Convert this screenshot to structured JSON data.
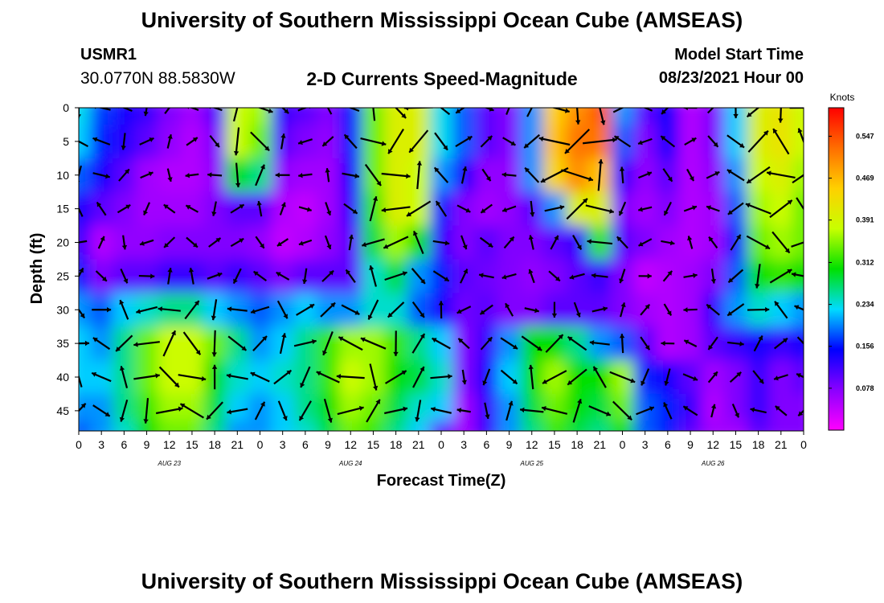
{
  "page": {
    "top_title": "University of Southern Mississippi Ocean Cube (AMSEAS)",
    "bottom_title": "University of Southern Mississippi Ocean Cube (AMSEAS)",
    "station_id": "USMR1",
    "station_coords": "30.0770N  88.5830W",
    "plot_title": "2-D Currents Speed-Magnitude",
    "model_start_label": "Model Start Time",
    "model_start_value": "08/23/2021 Hour 00"
  },
  "colors": {
    "scale": [
      "#ff00ff",
      "#8a00ff",
      "#0000ff",
      "#00dcff",
      "#00e000",
      "#c8ff00",
      "#ffd000",
      "#ff6e00",
      "#ff0000"
    ]
  },
  "chart_data": {
    "type": "heatmap",
    "title": "2-D Currents Speed-Magnitude",
    "xlabel": "Forecast Time(Z)",
    "ylabel": "Depth (ft)",
    "x_range_hours": [
      0,
      96
    ],
    "x_tick_labels": [
      "0",
      "3",
      "6",
      "9",
      "12",
      "15",
      "18",
      "21",
      "0",
      "3",
      "6",
      "9",
      "12",
      "15",
      "18",
      "21",
      "0",
      "3",
      "6",
      "9",
      "12",
      "15",
      "18",
      "21",
      "0",
      "3",
      "6",
      "9",
      "12",
      "15",
      "18",
      "21",
      "0"
    ],
    "day_labels": [
      "AUG 23",
      "AUG 24",
      "AUG 25",
      "AUG 26"
    ],
    "y_range_ft": [
      0,
      48
    ],
    "y_ticks": [
      0,
      5,
      10,
      15,
      20,
      25,
      30,
      35,
      40,
      45
    ],
    "y_tick_labels": [
      "0",
      "5",
      "10",
      "15",
      "20",
      "25",
      "30",
      "35",
      "40",
      "45"
    ],
    "colorbar": {
      "unit": "Knots",
      "tick_labels": [
        "0.547",
        "0.469",
        "0.391",
        "0.312",
        "0.234",
        "0.156",
        "0.078"
      ],
      "tick_values": [
        0.547,
        0.469,
        0.391,
        0.312,
        0.234,
        0.156,
        0.078
      ],
      "range": [
        0.0,
        0.6
      ]
    },
    "time_hours": [
      0,
      3,
      6,
      9,
      12,
      15,
      18,
      21,
      24,
      27,
      30,
      33,
      36,
      39,
      42,
      45,
      48,
      51,
      54,
      57,
      60,
      63,
      66,
      69,
      72,
      75,
      78,
      81,
      84,
      87,
      90,
      93,
      96
    ],
    "depths_ft": [
      0,
      5,
      10,
      15,
      20,
      25,
      30,
      35,
      40,
      45,
      48
    ],
    "speed_knots": [
      [
        0.23,
        0.17,
        0.14,
        0.12,
        0.08,
        0.06,
        0.1,
        0.38,
        0.36,
        0.12,
        0.1,
        0.08,
        0.16,
        0.34,
        0.4,
        0.4,
        0.23,
        0.18,
        0.1,
        0.08,
        0.2,
        0.45,
        0.5,
        0.54,
        0.2,
        0.1,
        0.15,
        0.05,
        0.08,
        0.22,
        0.4,
        0.42,
        0.38
      ],
      [
        0.22,
        0.16,
        0.13,
        0.1,
        0.07,
        0.05,
        0.08,
        0.38,
        0.34,
        0.1,
        0.08,
        0.07,
        0.16,
        0.34,
        0.4,
        0.4,
        0.23,
        0.18,
        0.1,
        0.08,
        0.2,
        0.46,
        0.52,
        0.52,
        0.18,
        0.08,
        0.14,
        0.05,
        0.08,
        0.22,
        0.4,
        0.42,
        0.38
      ],
      [
        0.18,
        0.14,
        0.1,
        0.06,
        0.05,
        0.05,
        0.07,
        0.3,
        0.26,
        0.07,
        0.06,
        0.06,
        0.14,
        0.34,
        0.4,
        0.38,
        0.2,
        0.14,
        0.07,
        0.07,
        0.2,
        0.44,
        0.5,
        0.46,
        0.12,
        0.07,
        0.1,
        0.05,
        0.07,
        0.2,
        0.38,
        0.4,
        0.36
      ],
      [
        0.14,
        0.1,
        0.08,
        0.06,
        0.06,
        0.06,
        0.08,
        0.1,
        0.1,
        0.05,
        0.04,
        0.06,
        0.12,
        0.32,
        0.4,
        0.38,
        0.16,
        0.08,
        0.06,
        0.07,
        0.1,
        0.2,
        0.4,
        0.4,
        0.08,
        0.06,
        0.08,
        0.05,
        0.06,
        0.18,
        0.36,
        0.38,
        0.34
      ],
      [
        0.12,
        0.05,
        0.07,
        0.07,
        0.08,
        0.08,
        0.08,
        0.08,
        0.07,
        0.04,
        0.05,
        0.07,
        0.1,
        0.28,
        0.36,
        0.3,
        0.12,
        0.08,
        0.1,
        0.08,
        0.08,
        0.1,
        0.12,
        0.32,
        0.1,
        0.08,
        0.06,
        0.05,
        0.06,
        0.16,
        0.34,
        0.36,
        0.34
      ],
      [
        0.16,
        0.08,
        0.1,
        0.1,
        0.12,
        0.12,
        0.1,
        0.12,
        0.1,
        0.08,
        0.1,
        0.1,
        0.1,
        0.24,
        0.28,
        0.2,
        0.16,
        0.1,
        0.09,
        0.08,
        0.07,
        0.08,
        0.1,
        0.12,
        0.08,
        0.04,
        0.05,
        0.06,
        0.08,
        0.18,
        0.3,
        0.32,
        0.3
      ],
      [
        0.2,
        0.18,
        0.22,
        0.24,
        0.26,
        0.26,
        0.22,
        0.2,
        0.18,
        0.2,
        0.22,
        0.2,
        0.2,
        0.24,
        0.24,
        0.18,
        0.14,
        0.09,
        0.1,
        0.08,
        0.08,
        0.1,
        0.1,
        0.1,
        0.08,
        0.06,
        0.05,
        0.06,
        0.12,
        0.2,
        0.24,
        0.22,
        0.2
      ],
      [
        0.22,
        0.2,
        0.26,
        0.34,
        0.38,
        0.38,
        0.34,
        0.26,
        0.2,
        0.22,
        0.26,
        0.32,
        0.36,
        0.36,
        0.32,
        0.26,
        0.22,
        0.08,
        0.12,
        0.2,
        0.3,
        0.3,
        0.26,
        0.2,
        0.18,
        0.1,
        0.05,
        0.06,
        0.1,
        0.12,
        0.14,
        0.12,
        0.14
      ],
      [
        0.22,
        0.22,
        0.26,
        0.34,
        0.38,
        0.38,
        0.3,
        0.24,
        0.22,
        0.24,
        0.26,
        0.32,
        0.38,
        0.36,
        0.3,
        0.28,
        0.24,
        0.08,
        0.14,
        0.22,
        0.3,
        0.36,
        0.3,
        0.3,
        0.36,
        0.16,
        0.14,
        0.1,
        0.06,
        0.08,
        0.12,
        0.08,
        0.1
      ],
      [
        0.2,
        0.2,
        0.26,
        0.32,
        0.36,
        0.36,
        0.28,
        0.22,
        0.2,
        0.22,
        0.26,
        0.3,
        0.36,
        0.34,
        0.28,
        0.24,
        0.22,
        0.06,
        0.12,
        0.2,
        0.28,
        0.34,
        0.3,
        0.28,
        0.34,
        0.18,
        0.16,
        0.12,
        0.05,
        0.08,
        0.12,
        0.08,
        0.08
      ],
      [
        0.18,
        0.2,
        0.24,
        0.3,
        0.34,
        0.34,
        0.26,
        0.2,
        0.2,
        0.22,
        0.24,
        0.28,
        0.34,
        0.32,
        0.26,
        0.22,
        0.1,
        0.06,
        0.12,
        0.2,
        0.26,
        0.32,
        0.28,
        0.26,
        0.3,
        0.18,
        0.16,
        0.1,
        0.06,
        0.06,
        0.1,
        0.08,
        0.08
      ]
    ]
  }
}
